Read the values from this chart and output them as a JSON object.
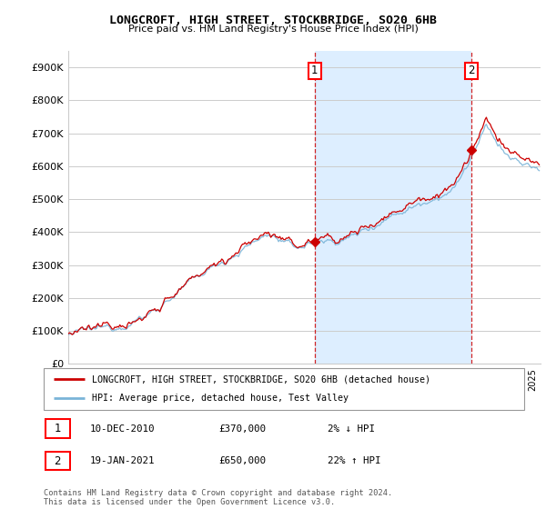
{
  "title": "LONGCROFT, HIGH STREET, STOCKBRIDGE, SO20 6HB",
  "subtitle": "Price paid vs. HM Land Registry's House Price Index (HPI)",
  "legend_line1": "LONGCROFT, HIGH STREET, STOCKBRIDGE, SO20 6HB (detached house)",
  "legend_line2": "HPI: Average price, detached house, Test Valley",
  "annotation1_date": "10-DEC-2010",
  "annotation1_price": "£370,000",
  "annotation1_hpi": "2% ↓ HPI",
  "annotation2_date": "19-JAN-2021",
  "annotation2_price": "£650,000",
  "annotation2_hpi": "22% ↑ HPI",
  "footer": "Contains HM Land Registry data © Crown copyright and database right 2024.\nThis data is licensed under the Open Government Licence v3.0.",
  "sale1_year": 2010.917,
  "sale1_value": 370000,
  "sale2_year": 2021.042,
  "sale2_value": 650000,
  "xlim_start": 1995.0,
  "xlim_end": 2025.5,
  "ylim": [
    0,
    950000
  ],
  "yticks": [
    0,
    100000,
    200000,
    300000,
    400000,
    500000,
    600000,
    700000,
    800000,
    900000
  ],
  "ytick_labels": [
    "£0",
    "£100K",
    "£200K",
    "£300K",
    "£400K",
    "£500K",
    "£600K",
    "£700K",
    "£800K",
    "£900K"
  ],
  "hpi_color": "#7ab4d8",
  "price_color": "#cc0000",
  "vline_color": "#cc0000",
  "shade_color": "#ddeeff",
  "grid_color": "#cccccc",
  "background_color": "#ffffff"
}
